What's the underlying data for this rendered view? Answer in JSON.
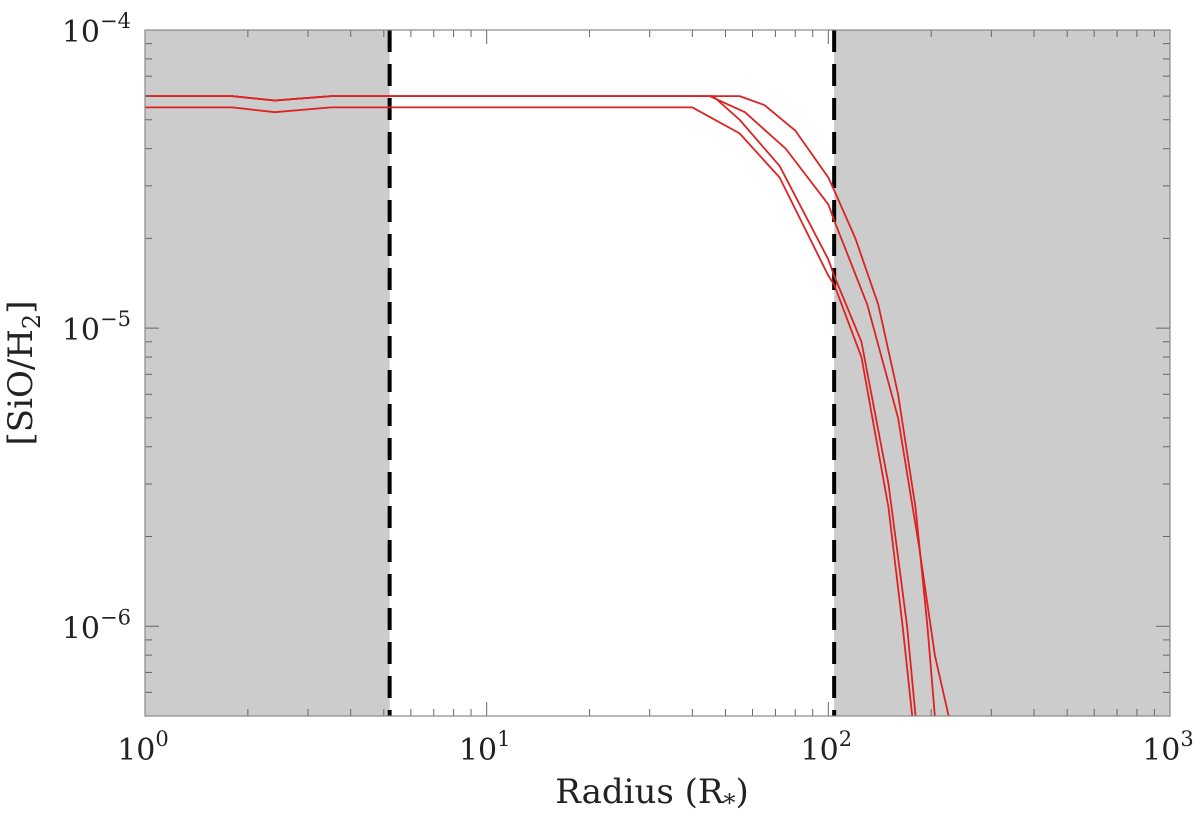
{
  "chart_data": {
    "type": "line",
    "title": "",
    "xlabel": "Radius (R",
    "xlabel_sub": "*",
    "xlabel_close": ")",
    "ylabel_parts": {
      "open": "[SiO/H",
      "sub": "2",
      "close": "]"
    },
    "xscale": "log",
    "yscale": "log",
    "xlim": [
      1,
      1000
    ],
    "ylim": [
      5e-07,
      0.0001
    ],
    "grid": false,
    "legend": "none",
    "x_ticks": [
      {
        "value": 1,
        "base": "10",
        "exp": "0"
      },
      {
        "value": 10,
        "base": "10",
        "exp": "1"
      },
      {
        "value": 100,
        "base": "10",
        "exp": "2"
      },
      {
        "value": 1000,
        "base": "10",
        "exp": "3"
      }
    ],
    "y_ticks": [
      {
        "value": 1e-06,
        "base": "10",
        "exp": "−6"
      },
      {
        "value": 1e-05,
        "base": "10",
        "exp": "−5"
      },
      {
        "value": 0.0001,
        "base": "10",
        "exp": "−4"
      }
    ],
    "shaded_regions": [
      {
        "x": [
          1,
          5.2
        ],
        "color": "#cccccc"
      },
      {
        "x": [
          104,
          1000
        ],
        "color": "#cccccc"
      }
    ],
    "vlines": [
      {
        "x": 5.2,
        "style": "dashed",
        "color": "#000000"
      },
      {
        "x": 104,
        "style": "dashed",
        "color": "#000000"
      }
    ],
    "series_color": "#dd2222",
    "series": [
      {
        "points": [
          [
            1,
            6e-05
          ],
          [
            1.8,
            6e-05
          ],
          [
            2.4,
            5.8e-05
          ],
          [
            3.5,
            6e-05
          ],
          [
            5.2,
            6e-05
          ],
          [
            10,
            6e-05
          ],
          [
            30,
            6e-05
          ],
          [
            55,
            6e-05
          ],
          [
            65,
            5.6e-05
          ],
          [
            80,
            4.6e-05
          ],
          [
            100,
            3.2e-05
          ],
          [
            104,
            2.9e-05
          ],
          [
            120,
            2e-05
          ],
          [
            140,
            1.2e-05
          ],
          [
            160,
            6e-06
          ],
          [
            180,
            2.5e-06
          ],
          [
            195,
            1e-06
          ],
          [
            205,
            5e-07
          ]
        ]
      },
      {
        "points": [
          [
            1,
            6e-05
          ],
          [
            1.8,
            6e-05
          ],
          [
            2.4,
            5.8e-05
          ],
          [
            3.5,
            6e-05
          ],
          [
            5.2,
            6e-05
          ],
          [
            10,
            6e-05
          ],
          [
            30,
            6e-05
          ],
          [
            45,
            6e-05
          ],
          [
            57,
            5.3e-05
          ],
          [
            75,
            4e-05
          ],
          [
            100,
            2.6e-05
          ],
          [
            104,
            2.3e-05
          ],
          [
            130,
            1.2e-05
          ],
          [
            160,
            5e-06
          ],
          [
            185,
            1.8e-06
          ],
          [
            205,
            8e-07
          ],
          [
            225,
            5e-07
          ]
        ]
      },
      {
        "points": [
          [
            1,
            6e-05
          ],
          [
            1.8,
            6e-05
          ],
          [
            2.4,
            5.8e-05
          ],
          [
            3.5,
            6e-05
          ],
          [
            5.2,
            6e-05
          ],
          [
            10,
            6e-05
          ],
          [
            30,
            6e-05
          ],
          [
            46,
            6e-05
          ],
          [
            55,
            5e-05
          ],
          [
            72,
            3.5e-05
          ],
          [
            100,
            1.7e-05
          ],
          [
            104,
            1.5e-05
          ],
          [
            125,
            9e-06
          ],
          [
            150,
            3e-06
          ],
          [
            170,
            1e-06
          ],
          [
            180,
            5e-07
          ]
        ]
      },
      {
        "points": [
          [
            1,
            5.5e-05
          ],
          [
            1.8,
            5.5e-05
          ],
          [
            2.4,
            5.3e-05
          ],
          [
            3.5,
            5.5e-05
          ],
          [
            5.2,
            5.5e-05
          ],
          [
            10,
            5.5e-05
          ],
          [
            30,
            5.5e-05
          ],
          [
            40,
            5.5e-05
          ],
          [
            55,
            4.5e-05
          ],
          [
            72,
            3.2e-05
          ],
          [
            100,
            1.5e-05
          ],
          [
            104,
            1.4e-05
          ],
          [
            125,
            8e-06
          ],
          [
            150,
            2.5e-06
          ],
          [
            165,
            1e-06
          ],
          [
            176,
            5e-07
          ]
        ]
      }
    ]
  }
}
